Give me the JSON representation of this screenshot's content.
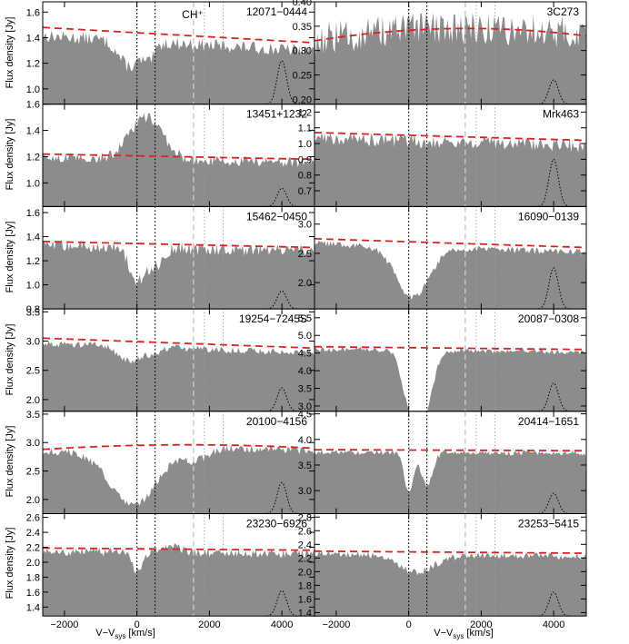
{
  "figure": {
    "ylabel": "Flux density [Jy]",
    "xlabel_main": "V−V",
    "xlabel_sub": "sys",
    "xlabel_unit": " [km/s]",
    "line_annotation": "CH⁺",
    "xticks": [
      -2000,
      0,
      2000,
      4000
    ],
    "xrange": [
      -2600,
      4900
    ],
    "reference_lines_kms": {
      "dotted_black": [
        0,
        500
      ],
      "dashed_gray": 1560,
      "dotted_gray": [
        1860,
        2380
      ]
    },
    "colors": {
      "fill": "#8c8c8c",
      "continuum": "#e02020",
      "guide": "#000000",
      "guide_gray": "#9a9a9a"
    }
  },
  "chart_data": [
    {
      "type": "area",
      "label": "12071−0444",
      "ylim": [
        0.88,
        1.68
      ],
      "yticks": [
        "1.0",
        "1.2",
        "1.4",
        "1.6"
      ],
      "yvals": [
        1.0,
        1.2,
        1.4,
        1.6
      ],
      "continuum": [
        1.48,
        1.36
      ],
      "baseline": 1.38,
      "noise": 0.05,
      "features": [
        [
          -200,
          300,
          0.2
        ],
        [
          350,
          150,
          0.12
        ]
      ],
      "gaussian_peak": 1.22
    },
    {
      "type": "area",
      "label": "3C273",
      "ylim": [
        0.19,
        0.4
      ],
      "yticks": [
        "0.20",
        "0.25",
        "0.30",
        "0.35",
        "0.40"
      ],
      "yvals": [
        0.2,
        0.25,
        0.3,
        0.35,
        0.4
      ],
      "continuum": [
        0.32,
        0.33
      ],
      "continuum_peak": 0.345,
      "baseline": 0.33,
      "noise": 0.035,
      "features": [],
      "gaussian_peak": 0.24
    },
    {
      "type": "area",
      "label": "13451+1232",
      "ylim": [
        0.82,
        1.6
      ],
      "yticks": [
        "1.0",
        "1.2",
        "1.4",
        "1.6"
      ],
      "yvals": [
        1.0,
        1.2,
        1.4,
        1.6
      ],
      "continuum": [
        1.22,
        1.18
      ],
      "baseline": 1.2,
      "noise": 0.04,
      "features": [
        [
          250,
          450,
          -0.32
        ]
      ],
      "gaussian_peak": 0.96
    },
    {
      "type": "area",
      "label": "Mrk463",
      "ylim": [
        0.6,
        1.25
      ],
      "yticks": [
        "0.7",
        "0.8",
        "0.9",
        "1.0",
        "1.1",
        "1.2"
      ],
      "yvals": [
        0.7,
        0.8,
        0.9,
        1.0,
        1.1,
        1.2
      ],
      "continuum": [
        1.07,
        1.02
      ],
      "baseline": 1.03,
      "noise": 0.045,
      "features": [],
      "gaussian_peak": 0.9
    },
    {
      "type": "area",
      "label": "15462−0450",
      "ylim": [
        0.8,
        1.65
      ],
      "yticks": [
        "0.8",
        "1.0",
        "1.2",
        "1.4",
        "1.6"
      ],
      "yvals": [
        0.8,
        1.0,
        1.2,
        1.4,
        1.6
      ],
      "continuum": [
        1.36,
        1.31
      ],
      "baseline": 1.33,
      "noise": 0.05,
      "features": [
        [
          0,
          200,
          0.28
        ],
        [
          500,
          200,
          0.15
        ]
      ],
      "gaussian_peak": 0.95
    },
    {
      "type": "area",
      "label": "16090−0139",
      "ylim": [
        1.55,
        3.3
      ],
      "yticks": [
        "2.0",
        "2.5",
        "3.0"
      ],
      "yvals": [
        2.0,
        2.5,
        3.0
      ],
      "continuum": [
        2.75,
        2.6
      ],
      "baseline": 2.65,
      "noise": 0.06,
      "features": [
        [
          100,
          450,
          0.85
        ]
      ],
      "gaussian_peak": 2.25
    },
    {
      "type": "area",
      "label": "19254−7245S",
      "ylim": [
        1.8,
        3.55
      ],
      "yticks": [
        "2.0",
        "2.5",
        "3.0",
        "3.5"
      ],
      "yvals": [
        2.0,
        2.5,
        3.0,
        3.5
      ],
      "continuum": [
        3.05,
        2.88
      ],
      "baseline": 2.95,
      "noise": 0.06,
      "features": [
        [
          -200,
          300,
          0.25
        ],
        [
          450,
          200,
          0.1
        ]
      ],
      "gaussian_peak": 2.2
    },
    {
      "type": "area",
      "label": "20087−0308",
      "ylim": [
        2.85,
        5.75
      ],
      "yticks": [
        "3.0",
        "3.5",
        "4.0",
        "4.5",
        "5.0",
        "5.5"
      ],
      "yvals": [
        3.0,
        3.5,
        4.0,
        4.5,
        5.0,
        5.5
      ],
      "continuum": [
        4.68,
        4.6
      ],
      "baseline": 4.65,
      "noise": 0.07,
      "features": [
        [
          0,
          200,
          1.4
        ],
        [
          500,
          200,
          1.4
        ],
        [
          250,
          150,
          1.0
        ]
      ],
      "gaussian_peak": 3.65
    },
    {
      "type": "area",
      "label": "20100−4156",
      "ylim": [
        1.75,
        3.55
      ],
      "yticks": [
        "2.0",
        "2.5",
        "3.0",
        "3.5"
      ],
      "yvals": [
        2.0,
        2.5,
        3.0,
        3.5
      ],
      "continuum": [
        2.88,
        2.9
      ],
      "continuum_peak": 2.96,
      "baseline": 2.85,
      "noise": 0.07,
      "features": [
        [
          -100,
          650,
          1.0
        ],
        [
          1600,
          350,
          0.2
        ]
      ],
      "gaussian_peak": 2.3
    },
    {
      "type": "area",
      "label": "20414−1651",
      "ylim": [
        2.55,
        4.55
      ],
      "yticks": [
        "3.0",
        "3.5",
        "4.0",
        "4.5"
      ],
      "yvals": [
        3.0,
        3.5,
        4.0,
        4.5
      ],
      "continuum": [
        3.8,
        3.78
      ],
      "baseline": 3.78,
      "noise": 0.05,
      "features": [
        [
          0,
          120,
          0.8
        ],
        [
          500,
          150,
          0.65
        ]
      ],
      "gaussian_peak": 2.95
    },
    {
      "type": "area",
      "label": "23230−6926",
      "ylim": [
        1.28,
        2.65
      ],
      "yticks": [
        "1.4",
        "1.6",
        "1.8",
        "2.0",
        "2.2",
        "2.4",
        "2.6"
      ],
      "yvals": [
        1.4,
        1.6,
        1.8,
        2.0,
        2.2,
        2.4,
        2.6
      ],
      "continuum": [
        2.19,
        2.16
      ],
      "baseline": 2.16,
      "noise": 0.06,
      "features": [
        [
          0,
          150,
          0.25
        ],
        [
          900,
          250,
          -0.1
        ]
      ],
      "gaussian_peak": 1.62
    },
    {
      "type": "area",
      "label": "23253−5415",
      "ylim": [
        1.35,
        2.85
      ],
      "yticks": [
        "1.4",
        "1.6",
        "1.8",
        "2.0",
        "2.2",
        "2.4",
        "2.6",
        "2.8"
      ],
      "yvals": [
        1.4,
        1.6,
        1.8,
        2.0,
        2.2,
        2.4,
        2.6,
        2.8
      ],
      "continuum": [
        2.3,
        2.27
      ],
      "baseline": 2.27,
      "noise": 0.05,
      "features": [
        [
          200,
          500,
          0.25
        ]
      ],
      "gaussian_peak": 1.7
    }
  ]
}
